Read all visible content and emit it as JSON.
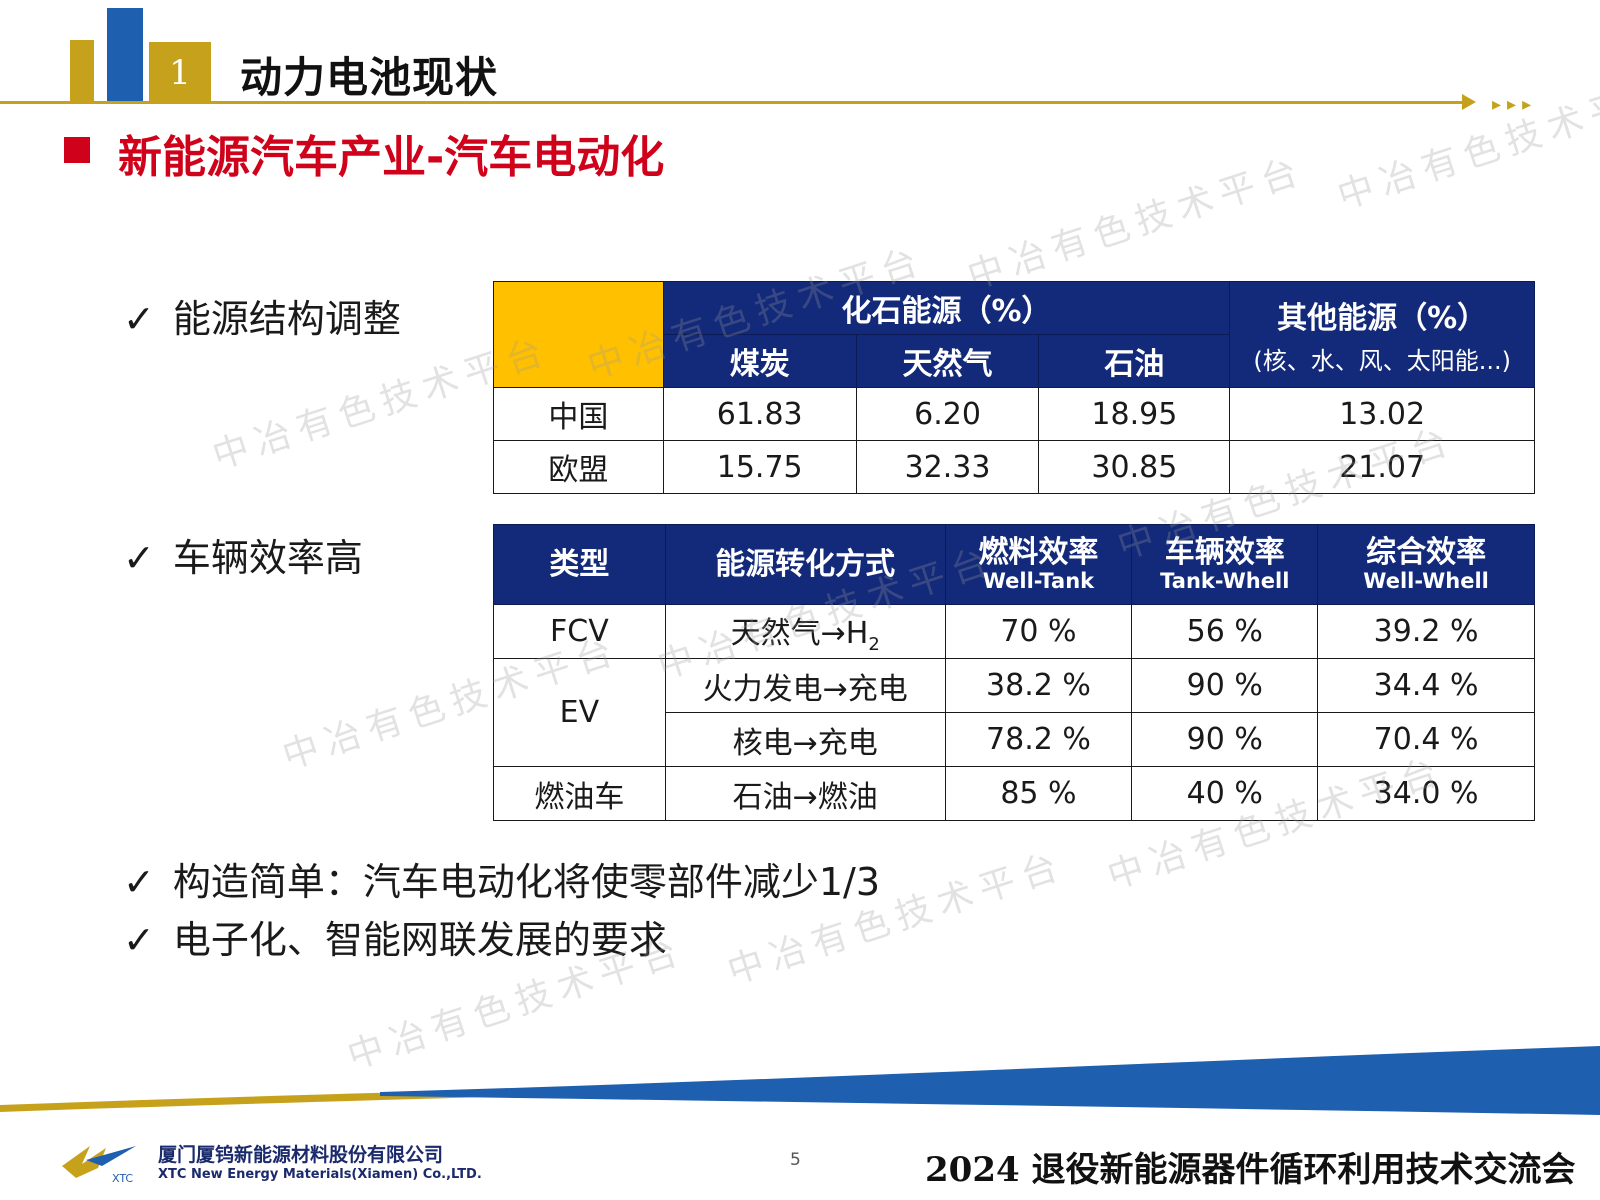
{
  "header": {
    "section_number": "1",
    "title": "动力电池现状",
    "subtitle": "新能源汽车产业-汽车电动化"
  },
  "bullets": [
    "能源结构调整",
    "车辆效率高",
    "构造简单：汽车电动化将使零部件减少1/3",
    "电子化、智能网联发展的要求"
  ],
  "bullet_mark": "✓",
  "energy_table": {
    "fossil_header": "化石能源（%）",
    "fossil_columns": [
      "煤炭",
      "天然气",
      "石油"
    ],
    "other_header": "其他能源（%）",
    "other_sub": "(核、水、风、太阳能...)",
    "rows": [
      {
        "region": "中国",
        "coal": "61.83",
        "gas": "6.20",
        "oil": "18.95",
        "other": "13.02"
      },
      {
        "region": "欧盟",
        "coal": "15.75",
        "gas": "32.33",
        "oil": "30.85",
        "other": "21.07"
      }
    ]
  },
  "efficiency_table": {
    "headers": {
      "type": "类型",
      "method": "能源转化方式",
      "fuel": "燃料效率",
      "fuel_en": "Well-Tank",
      "vehicle": "车辆效率",
      "vehicle_en": "Tank-Whell",
      "total": "综合效率",
      "total_en": "Well-Whell"
    },
    "rows": [
      {
        "type": "FCV",
        "method": "天然气→H",
        "method_sub": "2",
        "fuel": "70 %",
        "vehicle": "56 %",
        "total": "39.2 %"
      },
      {
        "type": "EV",
        "method": "火力发电→充电",
        "fuel": "38.2 %",
        "vehicle": "90 %",
        "total": "34.4 %"
      },
      {
        "type": "",
        "method": "核电→充电",
        "fuel": "78.2 %",
        "vehicle": "90 %",
        "total": "70.4 %"
      },
      {
        "type": "燃油车",
        "method": "石油→燃油",
        "fuel": "85 %",
        "vehicle": "40 %",
        "total": "34.0 %"
      }
    ]
  },
  "watermark": "中冶有色技术平台",
  "footer": {
    "company_cn": "厦门厦钨新能源材料股份有限公司",
    "company_en": "XTC New Energy Materials(Xiamen) Co.,LTD.",
    "logo_text": "XTC",
    "page_number": "5",
    "conference": "2024 退役新能源器件循环利用技术交流会"
  },
  "colors": {
    "gold": "#c6a21c",
    "blue": "#1f5fb0",
    "navy": "#13297a",
    "red": "#d0021b",
    "yellow": "#ffc000"
  }
}
